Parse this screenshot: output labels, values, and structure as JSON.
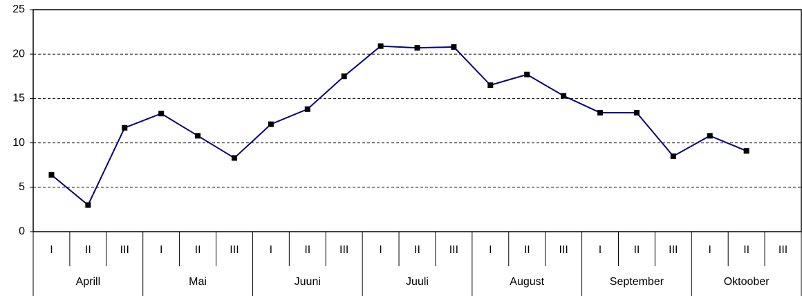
{
  "chart_data": {
    "type": "line",
    "categories": [
      "I",
      "II",
      "III",
      "I",
      "II",
      "III",
      "I",
      "II",
      "III",
      "I",
      "II",
      "III",
      "I",
      "II",
      "III",
      "I",
      "II",
      "III",
      "I",
      "II",
      "III"
    ],
    "category_groups": [
      "Aprill",
      "Mai",
      "Juuni",
      "Juuli",
      "August",
      "September",
      "Oktoober"
    ],
    "series": [
      {
        "color": "#000080",
        "marker_color": "#000000",
        "values": [
          6.4,
          3.0,
          11.7,
          13.3,
          10.8,
          8.3,
          12.1,
          13.8,
          17.5,
          20.9,
          20.7,
          20.8,
          16.5,
          17.7,
          15.3,
          13.4,
          13.4,
          8.5,
          10.8,
          9.1,
          null
        ]
      }
    ],
    "ylim": [
      0,
      25
    ],
    "yticks": [
      0,
      5,
      10,
      15,
      20,
      25
    ],
    "grid": true
  }
}
